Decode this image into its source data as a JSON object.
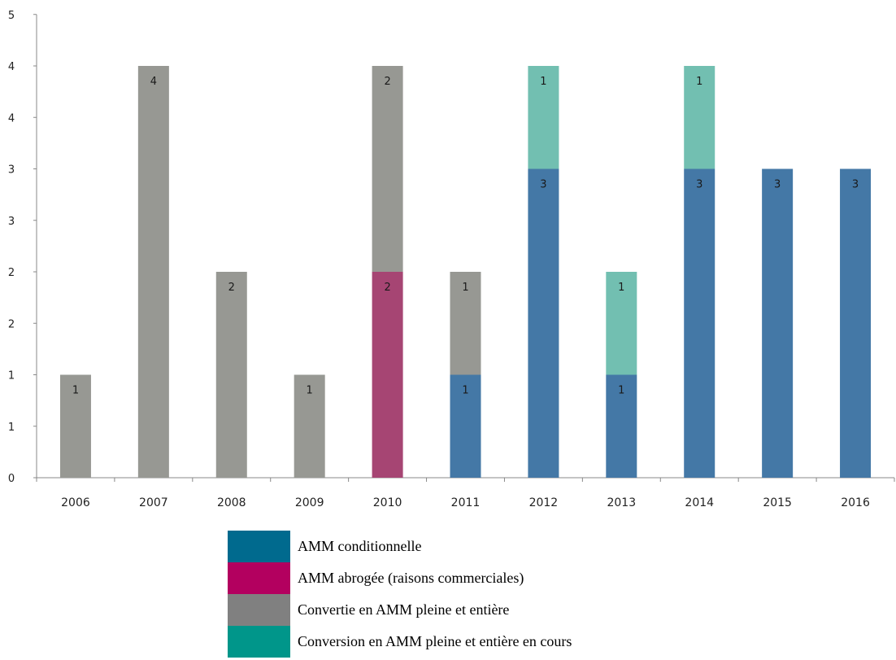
{
  "chart_data": {
    "type": "bar",
    "stacked": true,
    "categories": [
      "2006",
      "2007",
      "2008",
      "2009",
      "2010",
      "2011",
      "2012",
      "2013",
      "2014",
      "2015",
      "2016"
    ],
    "y_tick_labels": [
      "0",
      "1",
      "1",
      "2",
      "2",
      "3",
      "3",
      "4",
      "4",
      "5"
    ],
    "ylim": [
      0,
      4.5
    ],
    "y_tick_step": 0.5,
    "grid": false,
    "legend_position": "bottom",
    "series": [
      {
        "name": "AMM conditionnelle",
        "color": "#4478a6",
        "legend_color": "#006a8e",
        "values": [
          0,
          0,
          0,
          0,
          0,
          1,
          3,
          1,
          3,
          3,
          3
        ],
        "labels": [
          "",
          "",
          "",
          "",
          "",
          "1",
          "3",
          "1",
          "3",
          "3",
          "3"
        ]
      },
      {
        "name": "AMM abrogée (raisons commerciales)",
        "color": "#a64573",
        "legend_color": "#b3005f",
        "values": [
          0,
          0,
          0,
          0,
          2,
          0,
          0,
          0,
          0,
          0,
          0
        ],
        "labels": [
          "",
          "",
          "",
          "",
          "2",
          "",
          "",
          "",
          "",
          "",
          ""
        ]
      },
      {
        "name": "Convertie en AMM pleine et entière",
        "color": "#979893",
        "legend_color": "#808080",
        "values": [
          1,
          4,
          2,
          1,
          2,
          1,
          0,
          0,
          0,
          0,
          0
        ],
        "labels": [
          "1",
          "4",
          "2",
          "1",
          "2",
          "1",
          "",
          "",
          "",
          "",
          ""
        ]
      },
      {
        "name": "Conversion en AMM pleine et entière en cours",
        "color": "#72bfb1",
        "legend_color": "#00968a",
        "values": [
          0,
          0,
          0,
          0,
          0,
          0,
          1,
          1,
          1,
          0,
          0
        ],
        "labels": [
          "",
          "",
          "",
          "",
          "",
          "",
          "1",
          "1",
          "1",
          "",
          ""
        ]
      }
    ]
  }
}
